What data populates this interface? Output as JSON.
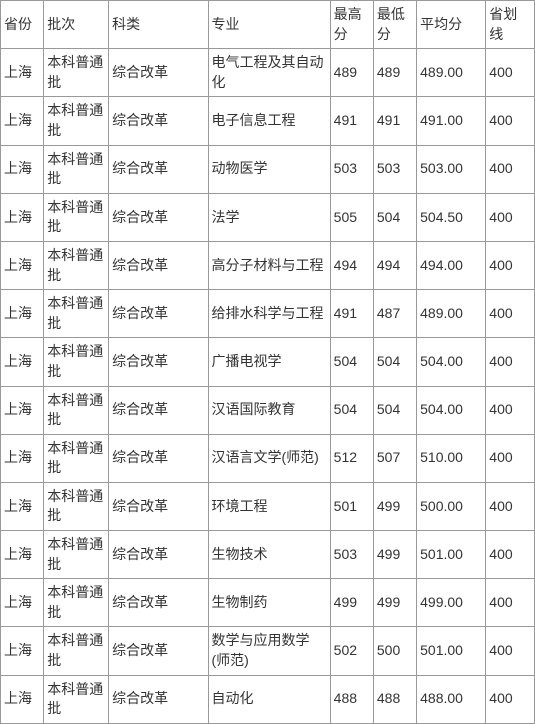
{
  "table": {
    "columns": [
      {
        "key": "province",
        "label": "省份",
        "class": "col-province"
      },
      {
        "key": "batch",
        "label": "批次",
        "class": "col-batch"
      },
      {
        "key": "subject",
        "label": "科类",
        "class": "col-subject"
      },
      {
        "key": "major",
        "label": "专业",
        "class": "col-major"
      },
      {
        "key": "max",
        "label": "最高分",
        "class": "col-max"
      },
      {
        "key": "min",
        "label": "最低分",
        "class": "col-min"
      },
      {
        "key": "avg",
        "label": "平均分",
        "class": "col-avg"
      },
      {
        "key": "line",
        "label": "省划线",
        "class": "col-line"
      }
    ],
    "rows": [
      {
        "province": "上海",
        "batch": "本科普通批",
        "subject": "综合改革",
        "major": "电气工程及其自动化",
        "max": "489",
        "min": "489",
        "avg": "489.00",
        "line": "400"
      },
      {
        "province": "上海",
        "batch": "本科普通批",
        "subject": "综合改革",
        "major": "电子信息工程",
        "max": "491",
        "min": "491",
        "avg": "491.00",
        "line": "400"
      },
      {
        "province": "上海",
        "batch": "本科普通批",
        "subject": "综合改革",
        "major": "动物医学",
        "max": "503",
        "min": "503",
        "avg": "503.00",
        "line": "400"
      },
      {
        "province": "上海",
        "batch": "本科普通批",
        "subject": "综合改革",
        "major": "法学",
        "max": "505",
        "min": "504",
        "avg": "504.50",
        "line": "400"
      },
      {
        "province": "上海",
        "batch": "本科普通批",
        "subject": "综合改革",
        "major": "高分子材料与工程",
        "max": "494",
        "min": "494",
        "avg": "494.00",
        "line": "400"
      },
      {
        "province": "上海",
        "batch": "本科普通批",
        "subject": "综合改革",
        "major": "给排水科学与工程",
        "max": "491",
        "min": "487",
        "avg": "489.00",
        "line": "400"
      },
      {
        "province": "上海",
        "batch": "本科普通批",
        "subject": "综合改革",
        "major": "广播电视学",
        "max": "504",
        "min": "504",
        "avg": "504.00",
        "line": "400"
      },
      {
        "province": "上海",
        "batch": "本科普通批",
        "subject": "综合改革",
        "major": "汉语国际教育",
        "max": "504",
        "min": "504",
        "avg": "504.00",
        "line": "400"
      },
      {
        "province": "上海",
        "batch": "本科普通批",
        "subject": "综合改革",
        "major": "汉语言文学(师范)",
        "max": "512",
        "min": "507",
        "avg": "510.00",
        "line": "400"
      },
      {
        "province": "上海",
        "batch": "本科普通批",
        "subject": "综合改革",
        "major": "环境工程",
        "max": "501",
        "min": "499",
        "avg": "500.00",
        "line": "400"
      },
      {
        "province": "上海",
        "batch": "本科普通批",
        "subject": "综合改革",
        "major": "生物技术",
        "max": "503",
        "min": "499",
        "avg": "501.00",
        "line": "400"
      },
      {
        "province": "上海",
        "batch": "本科普通批",
        "subject": "综合改革",
        "major": "生物制药",
        "max": "499",
        "min": "499",
        "avg": "499.00",
        "line": "400"
      },
      {
        "province": "上海",
        "batch": "本科普通批",
        "subject": "综合改革",
        "major": "数学与应用数学(师范)",
        "max": "502",
        "min": "500",
        "avg": "501.00",
        "line": "400"
      },
      {
        "province": "上海",
        "batch": "本科普通批",
        "subject": "综合改革",
        "major": "自动化",
        "max": "488",
        "min": "488",
        "avg": "488.00",
        "line": "400"
      }
    ],
    "border_color": "#999999",
    "text_color": "#333333",
    "background_color": "#ffffff",
    "font_size": 14
  }
}
